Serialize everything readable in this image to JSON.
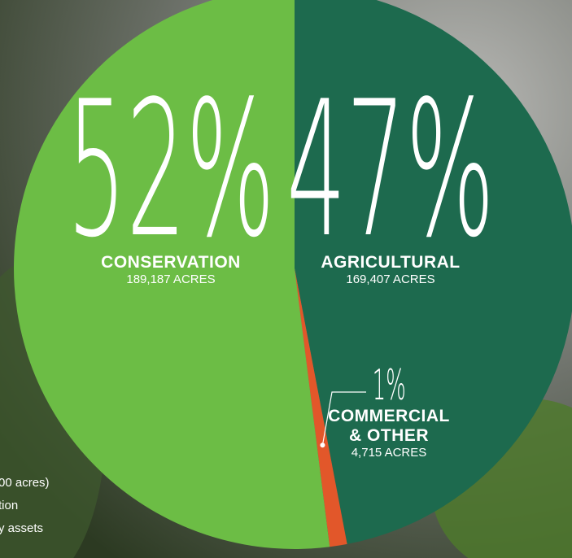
{
  "chart_data": {
    "type": "pie",
    "categories": [
      "AGRICULTURAL",
      "COMMERCIAL & OTHER",
      "CONSERVATION"
    ],
    "values": [
      47,
      1,
      52
    ],
    "value_labels": [
      "47%",
      "1%",
      "52%"
    ],
    "details": [
      "169,407 ACRES",
      "4,715 ACRES",
      "189,187 ACRES"
    ],
    "colors": [
      "#1d6a4e",
      "#e2572a",
      "#6cbd45"
    ],
    "annotations": [
      "00 acres)",
      "tion",
      "y assets"
    ]
  }
}
